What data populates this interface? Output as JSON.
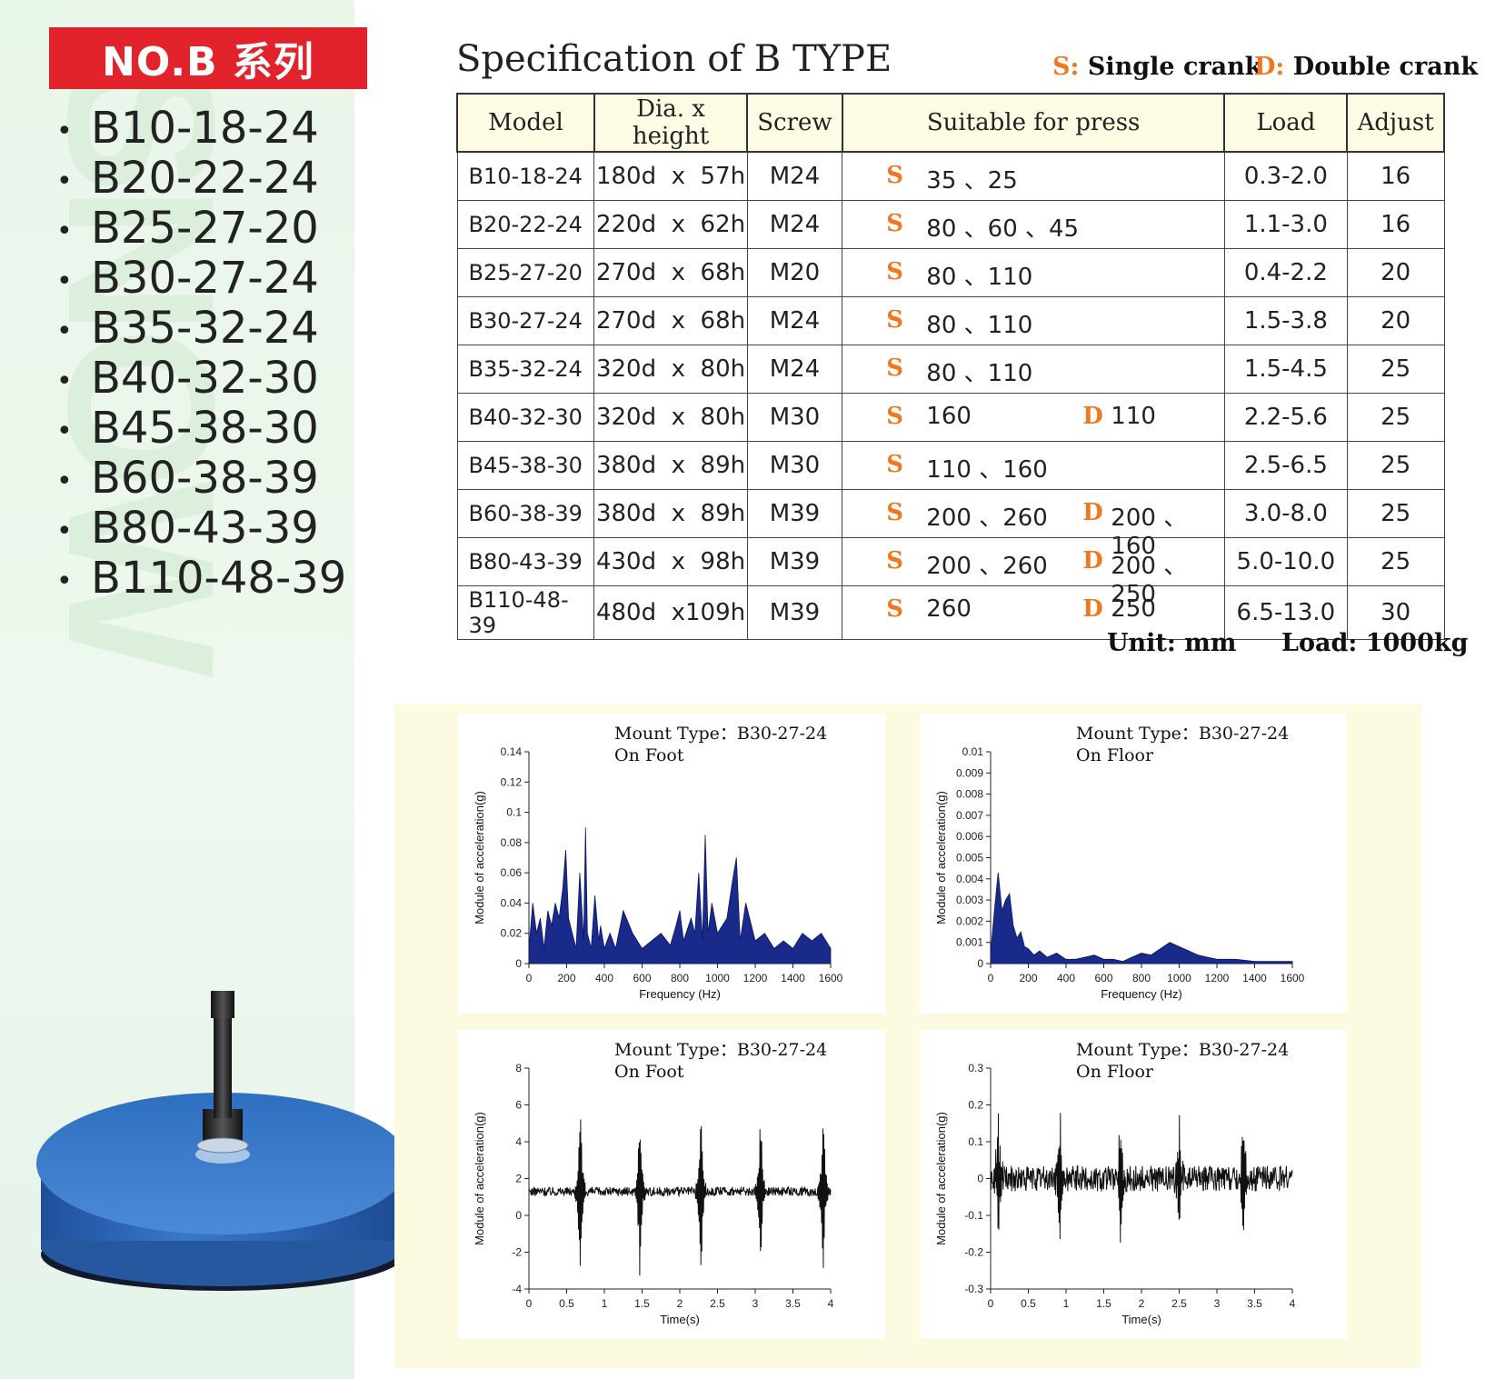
{
  "left": {
    "banner": "NO.B 系列",
    "models": [
      "B10-18-24",
      "B20-22-24",
      "B25-27-20",
      "B30-27-24",
      "B35-32-24",
      "B40-32-30",
      "B45-38-30",
      "B60-38-39",
      "B80-43-39",
      "B110-48-39"
    ]
  },
  "spec": {
    "title": "Specification of B TYPE",
    "legend_single_letter": "S:",
    "legend_single_text": " Single crank",
    "legend_double_letter": "D:",
    "legend_double_text": " Double crank",
    "headers": [
      "Model",
      "Dia. x height",
      "Screw",
      "Suitable for press",
      "Load",
      "Adjust"
    ],
    "rows": [
      {
        "model": "B10-18-24",
        "dia": "180d  x  57h",
        "screw": "M24",
        "s": "S",
        "sv": "35 、25",
        "d": "",
        "dv": "",
        "load": "0.3-2.0",
        "adjust": "16"
      },
      {
        "model": "B20-22-24",
        "dia": "220d  x  62h",
        "screw": "M24",
        "s": "S",
        "sv": "80 、60 、45",
        "d": "",
        "dv": "",
        "load": "1.1-3.0",
        "adjust": "16"
      },
      {
        "model": "B25-27-20",
        "dia": "270d  x  68h",
        "screw": "M20",
        "s": "S",
        "sv": "80 、110",
        "d": "",
        "dv": "",
        "load": "0.4-2.2",
        "adjust": "20"
      },
      {
        "model": "B30-27-24",
        "dia": "270d  x  68h",
        "screw": "M24",
        "s": "S",
        "sv": "80 、110",
        "d": "",
        "dv": "",
        "load": "1.5-3.8",
        "adjust": "20"
      },
      {
        "model": "B35-32-24",
        "dia": "320d  x  80h",
        "screw": "M24",
        "s": "S",
        "sv": "80 、110",
        "d": "",
        "dv": "",
        "load": "1.5-4.5",
        "adjust": "25"
      },
      {
        "model": "B40-32-30",
        "dia": "320d  x  80h",
        "screw": "M30",
        "s": "S",
        "sv": "160",
        "d": "D",
        "dv": "110",
        "load": "2.2-5.6",
        "adjust": "25"
      },
      {
        "model": "B45-38-30",
        "dia": "380d  x  89h",
        "screw": "M30",
        "s": "S",
        "sv": "110 、160",
        "d": "",
        "dv": "",
        "load": "2.5-6.5",
        "adjust": "25"
      },
      {
        "model": "B60-38-39",
        "dia": "380d  x  89h",
        "screw": "M39",
        "s": "S",
        "sv": "200 、260",
        "d": "D",
        "dv": "200 、160",
        "load": "3.0-8.0",
        "adjust": "25"
      },
      {
        "model": "B80-43-39",
        "dia": "430d  x  98h",
        "screw": "M39",
        "s": "S",
        "sv": "200 、260",
        "d": "D",
        "dv": "200 、250",
        "load": "5.0-10.0",
        "adjust": "25"
      },
      {
        "model": "B110-48-39",
        "dia": "480d  x109h",
        "screw": "M39",
        "s": "S",
        "sv": "260",
        "d": "D",
        "dv": "250",
        "load": "6.5-13.0",
        "adjust": "30"
      }
    ],
    "unit": "Unit: mm",
    "load_note": "Load: 1000kg"
  },
  "colors": {
    "banner": "#e3232c",
    "crank_letter": "#f07820",
    "fill": "#1a2a8a",
    "product_blue": "#2a64b8"
  },
  "chart_data": [
    {
      "type": "area",
      "title_line1": "Mount Type：B30-27-24",
      "title_line2": "On Foot",
      "xlabel": "Frequency (Hz)",
      "ylabel": "Module of acceleration(g)",
      "xlim": [
        0,
        1600
      ],
      "ylim": [
        0,
        0.14
      ],
      "xticks": [
        0,
        200,
        400,
        600,
        800,
        1000,
        1200,
        1400,
        1600
      ],
      "yticks": [
        0,
        0.02,
        0.04,
        0.06,
        0.08,
        0.1,
        0.12,
        0.14
      ],
      "xtick_labels": [
        "0",
        "200",
        "400",
        "600",
        "800",
        "1000",
        "1200",
        "1400",
        "1600"
      ],
      "ytick_labels": [
        "0",
        "0.02",
        "0.04",
        "0.06",
        "0.08",
        "0.1",
        "0.12",
        "0.14"
      ],
      "x": [
        0,
        20,
        40,
        60,
        80,
        100,
        120,
        140,
        160,
        180,
        195,
        210,
        230,
        250,
        270,
        290,
        300,
        310,
        330,
        350,
        370,
        380,
        400,
        430,
        460,
        500,
        550,
        600,
        650,
        700,
        750,
        780,
        800,
        820,
        860,
        880,
        900,
        920,
        935,
        950,
        970,
        1000,
        1050,
        1080,
        1100,
        1120,
        1150,
        1200,
        1250,
        1300,
        1350,
        1400,
        1450,
        1500,
        1550,
        1600
      ],
      "y": [
        0.01,
        0.04,
        0.02,
        0.03,
        0.01,
        0.035,
        0.025,
        0.04,
        0.03,
        0.05,
        0.075,
        0.03,
        0.02,
        0.01,
        0.06,
        0.015,
        0.09,
        0.02,
        0.01,
        0.045,
        0.015,
        0.025,
        0.01,
        0.02,
        0.01,
        0.035,
        0.02,
        0.01,
        0.015,
        0.02,
        0.012,
        0.025,
        0.035,
        0.015,
        0.03,
        0.02,
        0.06,
        0.015,
        0.085,
        0.02,
        0.04,
        0.02,
        0.03,
        0.055,
        0.07,
        0.015,
        0.04,
        0.015,
        0.02,
        0.01,
        0.015,
        0.01,
        0.02,
        0.015,
        0.02,
        0.01
      ]
    },
    {
      "type": "area",
      "title_line1": "Mount Type：B30-27-24",
      "title_line2": "On Floor",
      "xlabel": "Frequency (Hz)",
      "ylabel": "Module of acceleration(g)",
      "xlim": [
        0,
        1600
      ],
      "ylim": [
        0,
        0.01
      ],
      "xticks": [
        0,
        200,
        400,
        600,
        800,
        1000,
        1200,
        1400,
        1600
      ],
      "yticks": [
        0,
        0.001,
        0.002,
        0.003,
        0.004,
        0.005,
        0.006,
        0.007,
        0.008,
        0.009,
        0.01
      ],
      "xtick_labels": [
        "0",
        "200",
        "400",
        "600",
        "800",
        "1000",
        "1200",
        "1400",
        "1600"
      ],
      "ytick_labels": [
        "0",
        "0.001",
        "0.002",
        "0.003",
        "0.004",
        "0.005",
        "0.006",
        "0.007",
        "0.008",
        "0.009",
        "0.01"
      ],
      "x": [
        0,
        20,
        40,
        60,
        80,
        100,
        120,
        140,
        160,
        180,
        200,
        230,
        260,
        300,
        350,
        400,
        450,
        500,
        550,
        600,
        650,
        700,
        750,
        800,
        850,
        900,
        950,
        1000,
        1050,
        1100,
        1150,
        1200,
        1300,
        1400,
        1500,
        1600
      ],
      "y": [
        0.0005,
        0.0025,
        0.0043,
        0.0025,
        0.003,
        0.0033,
        0.0018,
        0.0012,
        0.0015,
        0.0008,
        0.0007,
        0.0004,
        0.0006,
        0.0003,
        0.0005,
        0.0002,
        0.0002,
        0.0003,
        0.0004,
        0.0002,
        0.0002,
        0.0001,
        0.0003,
        0.0005,
        0.0004,
        0.0007,
        0.001,
        0.0008,
        0.0006,
        0.0004,
        0.0003,
        0.0002,
        0.0002,
        0.0001,
        0.0001,
        0.0001
      ]
    },
    {
      "type": "line",
      "title_line1": "Mount Type：B30-27-24",
      "title_line2": "On Foot",
      "xlabel": "Time(s)",
      "ylabel": "Module of acceleration(g)",
      "xlim": [
        0,
        4
      ],
      "ylim": [
        -4,
        8
      ],
      "xticks": [
        0,
        0.5,
        1,
        1.5,
        2,
        2.5,
        3,
        3.5,
        4
      ],
      "yticks": [
        -4,
        -2,
        0,
        2,
        4,
        6,
        8
      ],
      "xtick_labels": [
        "0",
        "0.5",
        "1",
        "1.5",
        "2",
        "2.5",
        "3",
        "3.5",
        "4"
      ],
      "ytick_labels": [
        "-4",
        "-2",
        "0",
        "2",
        "4",
        "6",
        "8"
      ],
      "baseline": 1.3,
      "noise": 0.25,
      "spikes": [
        {
          "t": 0.68,
          "amp": 5.8
        },
        {
          "t": 1.47,
          "amp": 5.2
        },
        {
          "t": 2.28,
          "amp": 5.6
        },
        {
          "t": 3.07,
          "amp": 5.2
        },
        {
          "t": 3.9,
          "amp": 5.6
        }
      ]
    },
    {
      "type": "line",
      "title_line1": "Mount Type：B30-27-24",
      "title_line2": "On Floor",
      "xlabel": "Time(s)",
      "ylabel": "Module of acceleration(g)",
      "xlim": [
        0,
        4
      ],
      "ylim": [
        -0.3,
        0.3
      ],
      "xticks": [
        0,
        0.5,
        1,
        1.5,
        2,
        2.5,
        3,
        3.5,
        4
      ],
      "yticks": [
        -0.3,
        -0.2,
        -0.1,
        0,
        0.1,
        0.2,
        0.3
      ],
      "xtick_labels": [
        "0",
        "0.5",
        "1",
        "1.5",
        "2",
        "2.5",
        "3",
        "3.5",
        "4"
      ],
      "ytick_labels": [
        "-0.3",
        "-0.2",
        "-0.1",
        "0",
        "0.1",
        "0.2",
        "0.3"
      ],
      "baseline": 0.0,
      "noise": 0.035,
      "spikes": [
        {
          "t": 0.1,
          "amp": 0.19
        },
        {
          "t": 0.92,
          "amp": 0.2
        },
        {
          "t": 1.72,
          "amp": 0.2
        },
        {
          "t": 2.5,
          "amp": 0.2
        },
        {
          "t": 3.35,
          "amp": 0.2
        }
      ]
    }
  ]
}
